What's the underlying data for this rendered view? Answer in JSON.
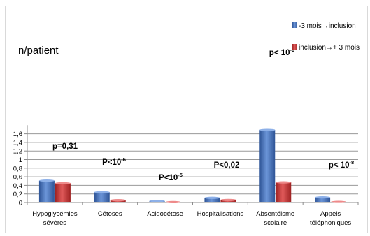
{
  "chart_data": {
    "type": "bar",
    "ylabel": "n/patient",
    "ylim": [
      0,
      1.8
    ],
    "yticks": [
      "0",
      "0,2",
      "0,4",
      "0,6",
      "0,8",
      "1",
      "1,2",
      "1,4",
      "1,6"
    ],
    "grid": true,
    "legend_position": "top-right",
    "categories": [
      [
        "Hypoglycémies",
        "sévères"
      ],
      [
        "Cétoses"
      ],
      [
        "Acidocétose"
      ],
      [
        "Hospitalisations"
      ],
      [
        "Absentéisme",
        "scolaire"
      ],
      [
        "Appels",
        "téléphoniques"
      ]
    ],
    "series": [
      {
        "name": "-3 mois→inclusion",
        "color": "#4472C4",
        "values": [
          0.51,
          0.24,
          0.035,
          0.11,
          1.69,
          0.12
        ]
      },
      {
        "name": "inclusion→+ 3 mois",
        "color": "#C0392B",
        "values": [
          0.45,
          0.055,
          0.01,
          0.06,
          0.47,
          0.015
        ]
      }
    ],
    "annotations": [
      {
        "category_index": 0,
        "text": "p=0,31",
        "sup": ""
      },
      {
        "category_index": 1,
        "text": "P<10",
        "sup": "-6"
      },
      {
        "category_index": 2,
        "text": "P<10",
        "sup": "-5"
      },
      {
        "category_index": 3,
        "text": "P<0,02",
        "sup": ""
      },
      {
        "category_index": 4,
        "text": "p< 10",
        "sup": "-9"
      },
      {
        "category_index": 5,
        "text": "p< 10",
        "sup": "-8"
      }
    ]
  }
}
